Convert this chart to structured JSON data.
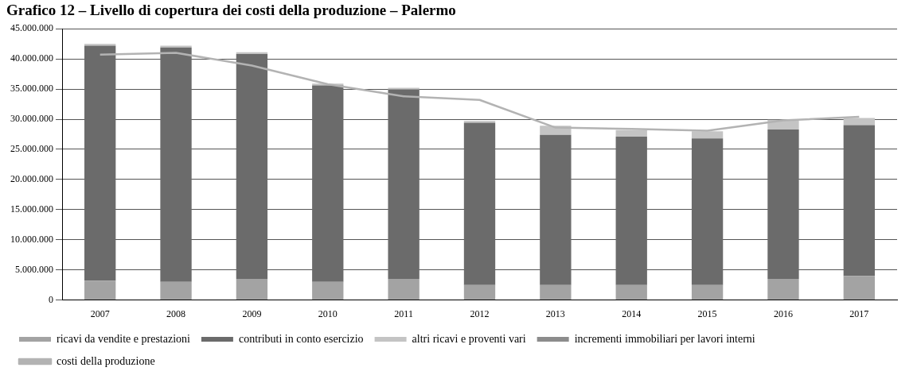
{
  "chart_data": {
    "type": "bar",
    "title": "Grafico 12 – Livello di copertura dei costi della produzione – Palermo",
    "categories": [
      "2007",
      "2008",
      "2009",
      "2010",
      "2011",
      "2012",
      "2013",
      "2014",
      "2015",
      "2016",
      "2017"
    ],
    "stacked": true,
    "series": [
      {
        "name": "ricavi da vendite e prestazioni",
        "color": "#a3a3a3",
        "values": [
          3200000,
          3000000,
          3500000,
          3000000,
          3500000,
          2500000,
          2500000,
          2500000,
          2500000,
          3500000,
          4000000
        ]
      },
      {
        "name": "contributi in conto esercizio",
        "color": "#6b6b6b",
        "values": [
          39000000,
          38900000,
          37300000,
          32600000,
          31400000,
          26900000,
          24900000,
          24600000,
          24300000,
          24800000,
          25000000
        ]
      },
      {
        "name": "altri ricavi e proventi vari",
        "color": "#c4c4c4",
        "values": [
          300000,
          300000,
          300000,
          300000,
          300000,
          300000,
          1500000,
          1100000,
          1200000,
          1600000,
          1200000
        ]
      },
      {
        "name": "incrementi immobiliari per lavori interni",
        "color": "#8c8c8c",
        "values": [
          null,
          null,
          null,
          null,
          null,
          null,
          null,
          null,
          null,
          null,
          null
        ]
      },
      {
        "name": "costi della produzione",
        "type": "line",
        "color": "#b3b3b3",
        "values": [
          40700000,
          41000000,
          38900000,
          35800000,
          33800000,
          33200000,
          28600000,
          28400000,
          28100000,
          29800000,
          30400000
        ]
      }
    ],
    "ylim": [
      0,
      45000000
    ],
    "yticks": [
      {
        "value": 0,
        "label": "0"
      },
      {
        "value": 5000000,
        "label": "5.000.000"
      },
      {
        "value": 10000000,
        "label": "10.000.000"
      },
      {
        "value": 15000000,
        "label": "15.000.000"
      },
      {
        "value": 20000000,
        "label": "20.000.000"
      },
      {
        "value": 25000000,
        "label": "25.000.000"
      },
      {
        "value": 30000000,
        "label": "30.000.000"
      },
      {
        "value": 35000000,
        "label": "35.000.000"
      },
      {
        "value": 40000000,
        "label": "40.000.000"
      },
      {
        "value": 45000000,
        "label": "45.000.000"
      }
    ],
    "grid": "y",
    "legend": "bottom",
    "marker": "none",
    "line_style": "solid"
  }
}
